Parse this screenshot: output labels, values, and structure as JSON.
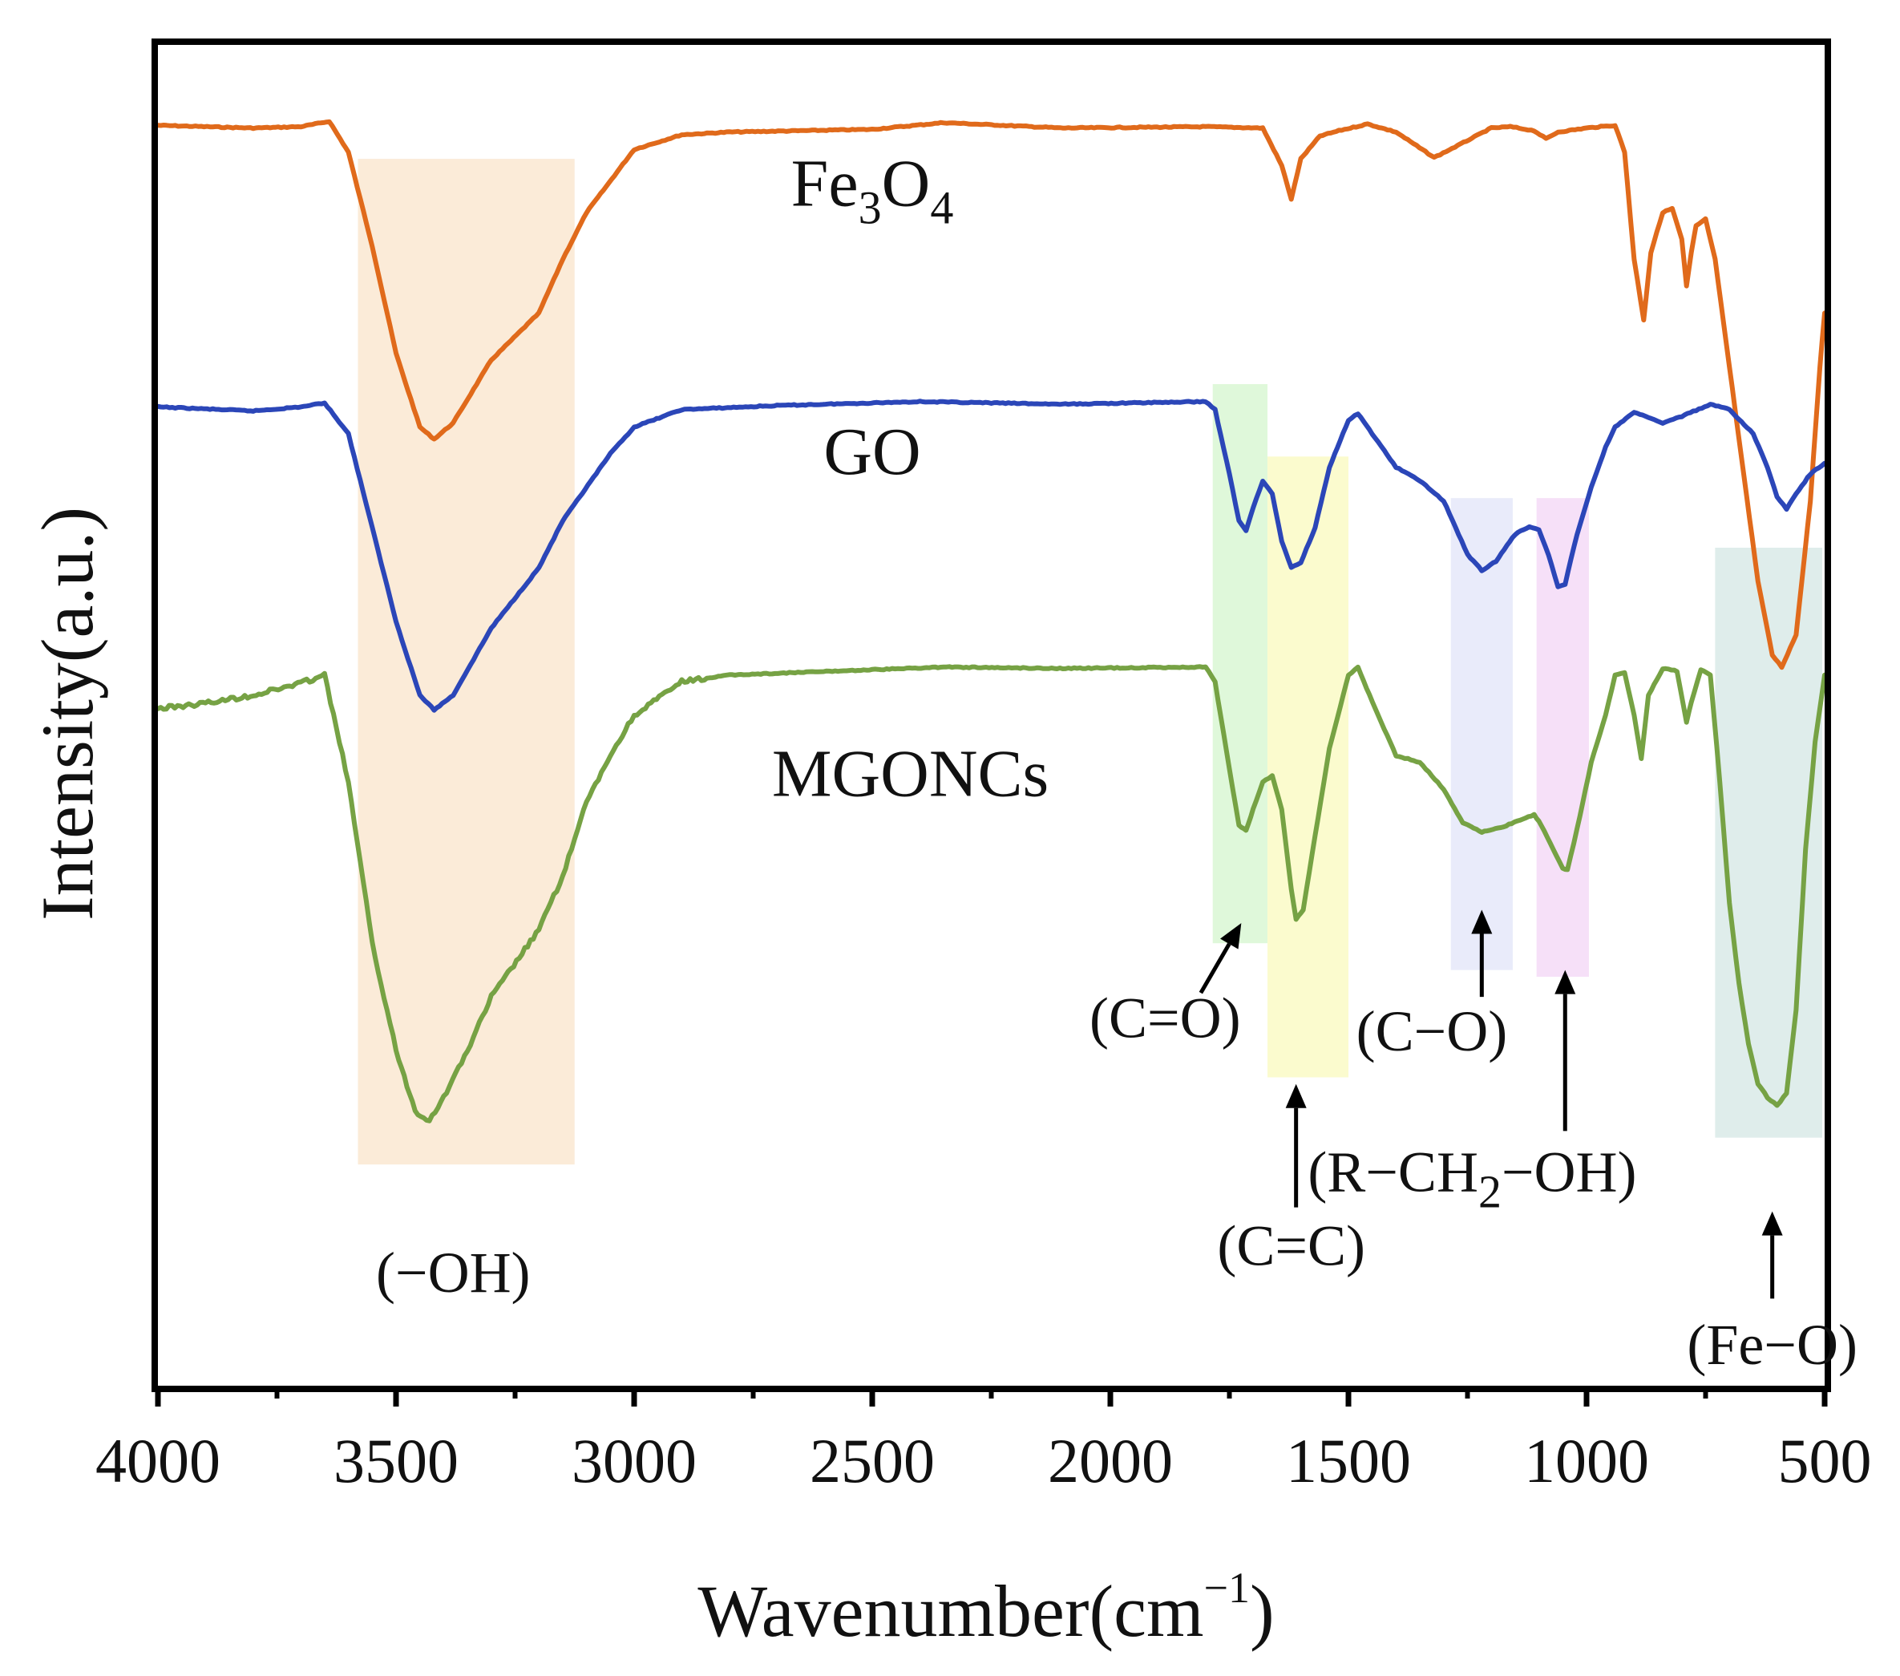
{
  "chart_data": {
    "type": "line",
    "title": "",
    "xlabel": "Wavenumber(cm",
    "xlabel_sup": "−1",
    "xlabel_tail": ")",
    "ylabel": "Intensity(a.u.)",
    "xlim": [
      4000,
      500
    ],
    "x_ticks": [
      4000,
      3500,
      3000,
      2500,
      2000,
      1500,
      1000,
      500
    ],
    "x_tick_labels": [
      "4000",
      "3500",
      "3000",
      "2500",
      "2000",
      "1500",
      "1000",
      "500"
    ],
    "ylim": [
      0,
      100
    ],
    "y_ticks_shown": false,
    "series": [
      {
        "name": "Fe3O4",
        "label_main": "Fe",
        "label_sub1": "3",
        "label_mid": "O",
        "label_sub2": "4",
        "color": "#E06A1B",
        "points": [
          [
            4000,
            94.0
          ],
          [
            3800,
            93.8
          ],
          [
            3700,
            93.9
          ],
          [
            3640,
            94.3
          ],
          [
            3600,
            92.0
          ],
          [
            3550,
            85.0
          ],
          [
            3500,
            77.0
          ],
          [
            3450,
            71.5
          ],
          [
            3420,
            70.6
          ],
          [
            3380,
            71.8
          ],
          [
            3300,
            76.5
          ],
          [
            3200,
            80.0
          ],
          [
            3150,
            84.0
          ],
          [
            3100,
            87.5
          ],
          [
            3000,
            92.2
          ],
          [
            2900,
            93.3
          ],
          [
            2800,
            93.5
          ],
          [
            2500,
            93.7
          ],
          [
            2350,
            94.2
          ],
          [
            2100,
            93.8
          ],
          [
            1800,
            93.9
          ],
          [
            1680,
            93.8
          ],
          [
            1640,
            91.0
          ],
          [
            1620,
            88.5
          ],
          [
            1600,
            91.5
          ],
          [
            1560,
            93.2
          ],
          [
            1520,
            93.6
          ],
          [
            1460,
            94.1
          ],
          [
            1400,
            93.5
          ],
          [
            1320,
            91.6
          ],
          [
            1270,
            92.5
          ],
          [
            1200,
            93.8
          ],
          [
            1160,
            93.9
          ],
          [
            1110,
            93.6
          ],
          [
            1085,
            93.0
          ],
          [
            1060,
            93.5
          ],
          [
            1000,
            93.8
          ],
          [
            940,
            94.0
          ],
          [
            920,
            92.0
          ],
          [
            900,
            84.0
          ],
          [
            880,
            79.5
          ],
          [
            865,
            84.5
          ],
          [
            840,
            87.5
          ],
          [
            820,
            87.8
          ],
          [
            800,
            85.5
          ],
          [
            790,
            82.0
          ],
          [
            780,
            84.5
          ],
          [
            770,
            86.5
          ],
          [
            750,
            87.0
          ],
          [
            730,
            84.0
          ],
          [
            700,
            76.0
          ],
          [
            670,
            68.0
          ],
          [
            640,
            60.0
          ],
          [
            610,
            54.5
          ],
          [
            590,
            53.6
          ],
          [
            560,
            56.0
          ],
          [
            530,
            66.0
          ],
          [
            510,
            76.0
          ],
          [
            500,
            80.0
          ]
        ]
      },
      {
        "name": "GO",
        "label_main": "GO",
        "color": "#2B46B8",
        "points": [
          [
            4000,
            73.0
          ],
          [
            3800,
            72.7
          ],
          [
            3700,
            73.0
          ],
          [
            3650,
            73.3
          ],
          [
            3600,
            71.0
          ],
          [
            3550,
            64.0
          ],
          [
            3500,
            57.0
          ],
          [
            3450,
            51.5
          ],
          [
            3420,
            50.4
          ],
          [
            3380,
            51.5
          ],
          [
            3300,
            56.5
          ],
          [
            3200,
            61.0
          ],
          [
            3150,
            64.5
          ],
          [
            3050,
            69.5
          ],
          [
            3000,
            71.5
          ],
          [
            2900,
            72.8
          ],
          [
            2700,
            73.1
          ],
          [
            2400,
            73.4
          ],
          [
            2100,
            73.2
          ],
          [
            1800,
            73.4
          ],
          [
            1780,
            72.8
          ],
          [
            1750,
            68.0
          ],
          [
            1730,
            64.5
          ],
          [
            1715,
            63.8
          ],
          [
            1700,
            65.5
          ],
          [
            1680,
            67.5
          ],
          [
            1660,
            66.5
          ],
          [
            1640,
            63.0
          ],
          [
            1620,
            61.0
          ],
          [
            1600,
            61.4
          ],
          [
            1570,
            64.0
          ],
          [
            1540,
            68.5
          ],
          [
            1500,
            72.0
          ],
          [
            1480,
            72.5
          ],
          [
            1450,
            71.0
          ],
          [
            1400,
            68.5
          ],
          [
            1350,
            67.5
          ],
          [
            1300,
            66.0
          ],
          [
            1250,
            62.0
          ],
          [
            1220,
            60.8
          ],
          [
            1190,
            61.5
          ],
          [
            1150,
            63.5
          ],
          [
            1120,
            64.1
          ],
          [
            1100,
            63.8
          ],
          [
            1080,
            62.0
          ],
          [
            1060,
            59.6
          ],
          [
            1045,
            59.8
          ],
          [
            1020,
            63.5
          ],
          [
            990,
            67.0
          ],
          [
            960,
            70.0
          ],
          [
            940,
            71.5
          ],
          [
            900,
            72.6
          ],
          [
            870,
            72.2
          ],
          [
            840,
            71.8
          ],
          [
            800,
            72.3
          ],
          [
            740,
            73.2
          ],
          [
            700,
            72.8
          ],
          [
            650,
            71.0
          ],
          [
            620,
            68.5
          ],
          [
            600,
            66.3
          ],
          [
            580,
            65.4
          ],
          [
            560,
            66.5
          ],
          [
            530,
            68.0
          ],
          [
            500,
            68.8
          ]
        ]
      },
      {
        "name": "MGONCs",
        "label_main": "MGONCs",
        "color": "#76A244",
        "points": [
          [
            4000,
            50.5
          ],
          [
            3900,
            50.9
          ],
          [
            3800,
            51.5
          ],
          [
            3700,
            52.4
          ],
          [
            3650,
            53.0
          ],
          [
            3600,
            45.0
          ],
          [
            3550,
            33.0
          ],
          [
            3500,
            25.0
          ],
          [
            3460,
            20.5
          ],
          [
            3430,
            19.8
          ],
          [
            3400,
            21.5
          ],
          [
            3350,
            25.0
          ],
          [
            3300,
            29.0
          ],
          [
            3200,
            34.0
          ],
          [
            3150,
            38.0
          ],
          [
            3100,
            43.5
          ],
          [
            3050,
            47.0
          ],
          [
            3000,
            50.0
          ],
          [
            2900,
            52.5
          ],
          [
            2800,
            53.0
          ],
          [
            2500,
            53.4
          ],
          [
            2350,
            53.6
          ],
          [
            2100,
            53.5
          ],
          [
            1800,
            53.6
          ],
          [
            1780,
            52.5
          ],
          [
            1750,
            46.0
          ],
          [
            1730,
            41.8
          ],
          [
            1715,
            41.4
          ],
          [
            1700,
            43.0
          ],
          [
            1680,
            45.0
          ],
          [
            1660,
            45.5
          ],
          [
            1640,
            43.0
          ],
          [
            1620,
            37.0
          ],
          [
            1610,
            34.8
          ],
          [
            1595,
            35.5
          ],
          [
            1570,
            41.0
          ],
          [
            1540,
            47.5
          ],
          [
            1500,
            53.0
          ],
          [
            1480,
            53.6
          ],
          [
            1450,
            51.0
          ],
          [
            1400,
            47.0
          ],
          [
            1350,
            46.5
          ],
          [
            1300,
            44.5
          ],
          [
            1260,
            42.0
          ],
          [
            1220,
            41.3
          ],
          [
            1180,
            41.6
          ],
          [
            1140,
            42.2
          ],
          [
            1110,
            42.6
          ],
          [
            1095,
            41.8
          ],
          [
            1070,
            40.0
          ],
          [
            1050,
            38.6
          ],
          [
            1040,
            38.5
          ],
          [
            1020,
            41.5
          ],
          [
            990,
            46.5
          ],
          [
            960,
            50.0
          ],
          [
            940,
            53.0
          ],
          [
            920,
            53.2
          ],
          [
            900,
            50.0
          ],
          [
            885,
            46.8
          ],
          [
            870,
            51.5
          ],
          [
            840,
            53.5
          ],
          [
            810,
            53.3
          ],
          [
            790,
            49.5
          ],
          [
            780,
            51.0
          ],
          [
            760,
            53.4
          ],
          [
            740,
            53.0
          ],
          [
            720,
            45.0
          ],
          [
            700,
            36.0
          ],
          [
            680,
            30.0
          ],
          [
            660,
            25.5
          ],
          [
            640,
            22.5
          ],
          [
            620,
            21.5
          ],
          [
            600,
            20.9
          ],
          [
            580,
            21.8
          ],
          [
            560,
            28.0
          ],
          [
            540,
            40.0
          ],
          [
            520,
            48.0
          ],
          [
            500,
            53.0
          ]
        ]
      }
    ],
    "bands": [
      {
        "x_from": 3580,
        "x_to": 3125,
        "y_from": 16.5,
        "y_to": 91.5,
        "color": "#FBE9D4",
        "group": "OH"
      },
      {
        "x_from": 1785,
        "x_to": 1670,
        "y_from": 33.0,
        "y_to": 74.7,
        "color": "#DBF7D6",
        "group": "C=O"
      },
      {
        "x_from": 1670,
        "x_to": 1500,
        "y_from": 23.0,
        "y_to": 69.3,
        "color": "#FBFBC9",
        "group": "C=C"
      },
      {
        "x_from": 1285,
        "x_to": 1155,
        "y_from": 31.0,
        "y_to": 66.2,
        "color": "#E7E9F9",
        "group": "C-O"
      },
      {
        "x_from": 1105,
        "x_to": 995,
        "y_from": 30.5,
        "y_to": 66.2,
        "color": "#F5DDF7",
        "group": "R-CH2-OH"
      },
      {
        "x_from": 730,
        "x_to": 505,
        "y_from": 18.5,
        "y_to": 62.5,
        "color": "#DCEBE9",
        "group": "Fe-O"
      }
    ],
    "annotations": [
      {
        "text": "(−OH)",
        "x": 3380,
        "y": 7.0,
        "arrow": false
      },
      {
        "text": "(C=O)",
        "x": 1885,
        "y": 26.0,
        "arrow": true,
        "arrow_from": [
          1810,
          29.3
        ],
        "arrow_to": [
          1725,
          34.5
        ]
      },
      {
        "text": "(C=C)",
        "x": 1620,
        "y": 9.0,
        "arrow": true,
        "arrow_from": [
          1610,
          13.3
        ],
        "arrow_to": [
          1610,
          22.5
        ]
      },
      {
        "text": "(C−O)",
        "x": 1325,
        "y": 25.0,
        "arrow": true,
        "arrow_from": [
          1220,
          29.0
        ],
        "arrow_to": [
          1220,
          35.5
        ]
      },
      {
        "text_main": "(R−CH",
        "text_sub": "2",
        "text_tail": "−OH)",
        "x": 1240,
        "y": 14.5,
        "arrow": true,
        "arrow_from": [
          1045,
          19.0
        ],
        "arrow_to": [
          1045,
          31.0
        ]
      },
      {
        "text": "(Fe−O)",
        "x": 610,
        "y": 1.6,
        "arrow": true,
        "arrow_from": [
          610,
          6.5
        ],
        "arrow_to": [
          610,
          13.0
        ]
      }
    ],
    "series_label_positions": [
      {
        "series": "Fe3O4",
        "x": 2500,
        "y": 88.0
      },
      {
        "series": "GO",
        "x": 2500,
        "y": 68.0
      },
      {
        "series": "MGONCs",
        "x": 2420,
        "y": 44.0
      }
    ],
    "legend": "none",
    "grid": false
  }
}
